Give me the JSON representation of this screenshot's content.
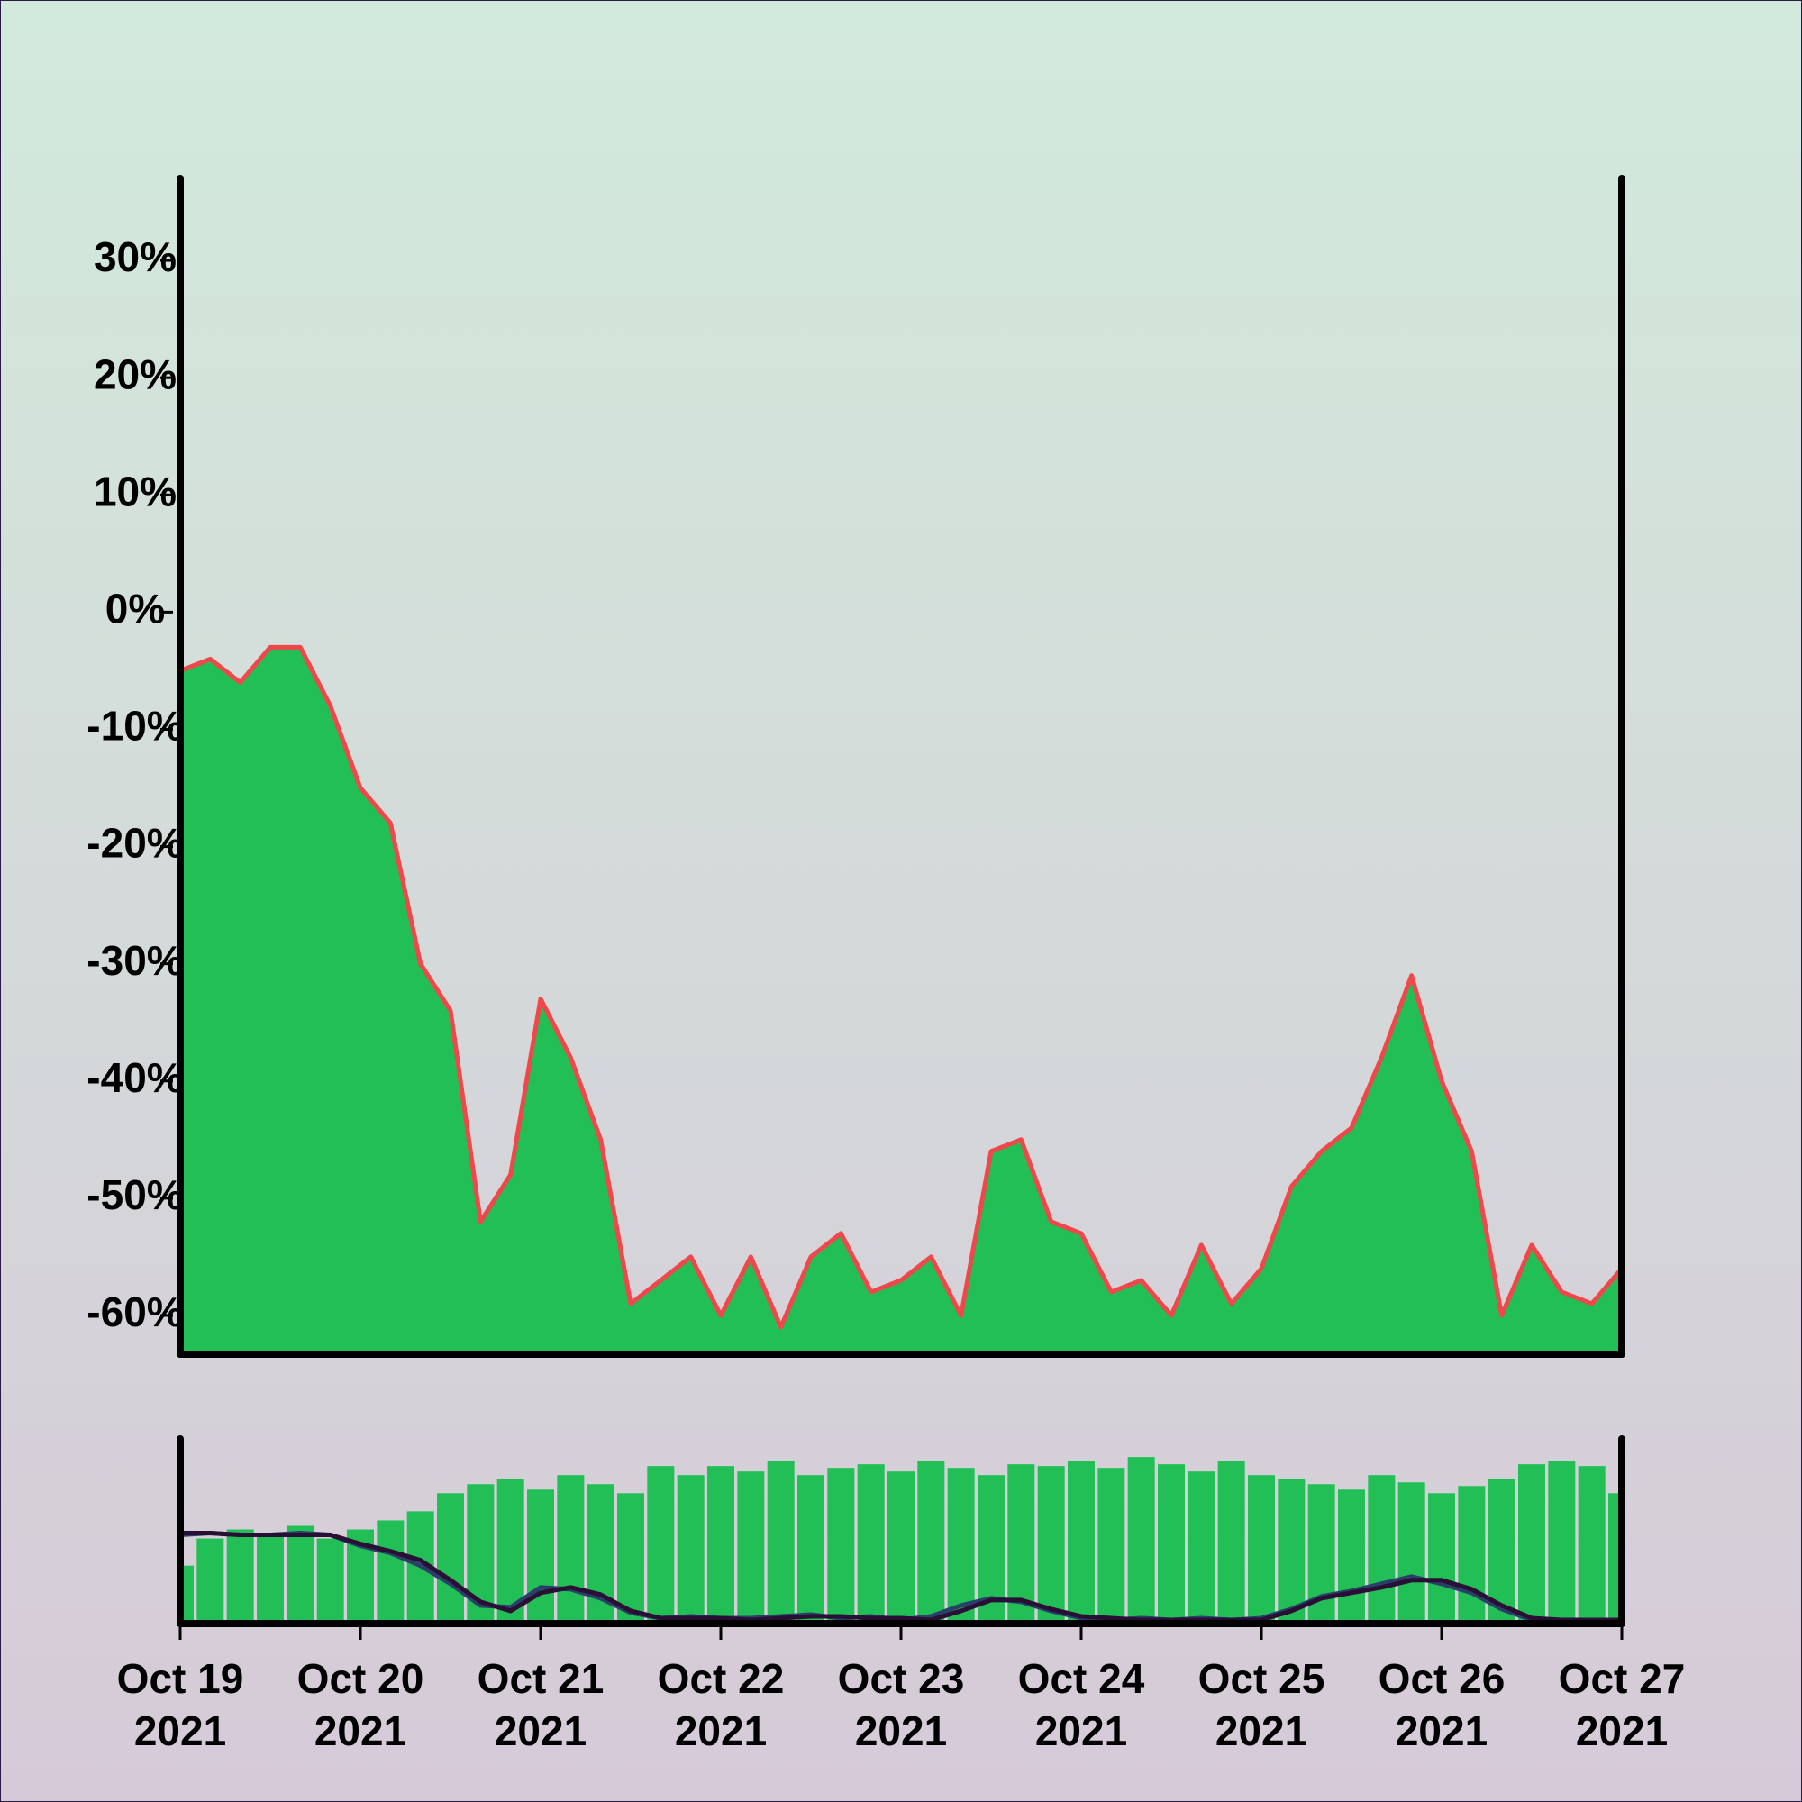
{
  "chart_data": [
    {
      "type": "area",
      "x": [
        "2021-10-19T00:00",
        "2021-10-19T04:00",
        "2021-10-19T08:00",
        "2021-10-19T12:00",
        "2021-10-19T16:00",
        "2021-10-19T20:00",
        "2021-10-20T00:00",
        "2021-10-20T04:00",
        "2021-10-20T08:00",
        "2021-10-20T12:00",
        "2021-10-20T16:00",
        "2021-10-20T20:00",
        "2021-10-21T00:00",
        "2021-10-21T04:00",
        "2021-10-21T08:00",
        "2021-10-21T12:00",
        "2021-10-21T16:00",
        "2021-10-21T20:00",
        "2021-10-22T00:00",
        "2021-10-22T04:00",
        "2021-10-22T08:00",
        "2021-10-22T12:00",
        "2021-10-22T16:00",
        "2021-10-22T20:00",
        "2021-10-23T00:00",
        "2021-10-23T04:00",
        "2021-10-23T08:00",
        "2021-10-23T12:00",
        "2021-10-23T16:00",
        "2021-10-23T20:00",
        "2021-10-24T00:00",
        "2021-10-24T04:00",
        "2021-10-24T08:00",
        "2021-10-24T12:00",
        "2021-10-24T16:00",
        "2021-10-24T20:00",
        "2021-10-25T00:00",
        "2021-10-25T04:00",
        "2021-10-25T08:00",
        "2021-10-25T12:00",
        "2021-10-25T16:00",
        "2021-10-25T20:00",
        "2021-10-26T00:00",
        "2021-10-26T04:00",
        "2021-10-26T08:00",
        "2021-10-26T12:00",
        "2021-10-26T16:00",
        "2021-10-26T20:00",
        "2021-10-27T00:00"
      ],
      "series": [
        {
          "color": "#f0474a",
          "fill": "#21bf55",
          "values": [
            -5,
            -4,
            -6,
            -3,
            -3,
            -8,
            -15,
            -18,
            -30,
            -34,
            -52,
            -48,
            -33,
            -38,
            -45,
            -59,
            -57,
            -55,
            -60,
            -55,
            -61,
            -55,
            -53,
            -58,
            -57,
            -55,
            -60,
            -46,
            -45,
            -52,
            -53,
            -58,
            -57,
            -60,
            -54,
            -59,
            -56,
            -49,
            -46,
            -44,
            -38,
            -31,
            -40,
            -46,
            -60,
            -54,
            -58,
            -59,
            -56
          ]
        }
      ],
      "xlim": [
        "2021-10-19T00:00",
        "2021-10-27T00:00"
      ],
      "ylim": [
        -63,
        37
      ],
      "yticks": [
        {
          "value": -60,
          "label": "-60%"
        },
        {
          "value": -50,
          "label": "-50%"
        },
        {
          "value": -40,
          "label": "-40%"
        },
        {
          "value": -30,
          "label": "-30%"
        },
        {
          "value": -20,
          "label": "-20%"
        },
        {
          "value": -10,
          "label": "-10%"
        },
        {
          "value": 0,
          "label": "0%"
        },
        {
          "value": 10,
          "label": "10%"
        },
        {
          "value": 20,
          "label": "20%"
        },
        {
          "value": 30,
          "label": "30%"
        }
      ]
    },
    {
      "type": "combo",
      "x": [
        "2021-10-19T00:00",
        "2021-10-19T04:00",
        "2021-10-19T08:00",
        "2021-10-19T12:00",
        "2021-10-19T16:00",
        "2021-10-19T20:00",
        "2021-10-20T00:00",
        "2021-10-20T04:00",
        "2021-10-20T08:00",
        "2021-10-20T12:00",
        "2021-10-20T16:00",
        "2021-10-20T20:00",
        "2021-10-21T00:00",
        "2021-10-21T04:00",
        "2021-10-21T08:00",
        "2021-10-21T12:00",
        "2021-10-21T16:00",
        "2021-10-21T20:00",
        "2021-10-22T00:00",
        "2021-10-22T04:00",
        "2021-10-22T08:00",
        "2021-10-22T12:00",
        "2021-10-22T16:00",
        "2021-10-22T20:00",
        "2021-10-23T00:00",
        "2021-10-23T04:00",
        "2021-10-23T08:00",
        "2021-10-23T12:00",
        "2021-10-23T16:00",
        "2021-10-23T20:00",
        "2021-10-24T00:00",
        "2021-10-24T04:00",
        "2021-10-24T08:00",
        "2021-10-24T12:00",
        "2021-10-24T16:00",
        "2021-10-24T20:00",
        "2021-10-25T00:00",
        "2021-10-25T04:00",
        "2021-10-25T08:00",
        "2021-10-25T12:00",
        "2021-10-25T16:00",
        "2021-10-25T20:00",
        "2021-10-26T00:00",
        "2021-10-26T04:00",
        "2021-10-26T08:00",
        "2021-10-26T12:00",
        "2021-10-26T16:00",
        "2021-10-26T20:00",
        "2021-10-27T00:00"
      ],
      "series": [
        {
          "type": "bar",
          "color": "#21bf55",
          "values": [
            30,
            45,
            50,
            48,
            52,
            45,
            50,
            55,
            60,
            70,
            75,
            78,
            72,
            80,
            75,
            70,
            85,
            80,
            85,
            82,
            88,
            80,
            84,
            86,
            82,
            88,
            84,
            80,
            86,
            85,
            88,
            84,
            90,
            86,
            82,
            88,
            80,
            78,
            75,
            72,
            80,
            76,
            70,
            74,
            78,
            86,
            88,
            85,
            70
          ]
        },
        {
          "type": "line",
          "color": "#2a3f6a",
          "values": [
            47,
            48,
            47,
            47,
            48,
            47,
            41,
            37,
            30,
            20,
            8,
            7,
            18,
            17,
            12,
            4,
            1,
            2,
            1,
            1,
            2,
            3,
            1,
            2,
            0,
            2,
            8,
            12,
            10,
            5,
            1,
            0,
            1,
            0,
            1,
            0,
            1,
            6,
            13,
            16,
            20,
            24,
            20,
            15,
            6,
            0,
            0,
            0,
            0
          ]
        },
        {
          "type": "line",
          "color": "#2a0f35",
          "values": [
            48,
            48,
            47,
            47,
            47,
            47,
            42,
            38,
            33,
            22,
            10,
            5,
            15,
            18,
            14,
            5,
            1,
            1,
            1,
            0,
            1,
            2,
            2,
            1,
            1,
            0,
            5,
            11,
            11,
            6,
            2,
            1,
            0,
            0,
            0,
            0,
            0,
            5,
            12,
            15,
            18,
            22,
            22,
            17,
            8,
            1,
            0,
            0,
            0
          ]
        }
      ],
      "xlim": [
        "2021-10-19T00:00",
        "2021-10-27T00:00"
      ],
      "ylim": [
        0,
        100
      ],
      "xticks": [
        {
          "value": "2021-10-19T00:00",
          "label": "Oct 19\n2021"
        },
        {
          "value": "2021-10-20T00:00",
          "label": "Oct 20\n2021"
        },
        {
          "value": "2021-10-21T00:00",
          "label": "Oct 21\n2021"
        },
        {
          "value": "2021-10-22T00:00",
          "label": "Oct 22\n2021"
        },
        {
          "value": "2021-10-23T00:00",
          "label": "Oct 23\n2021"
        },
        {
          "value": "2021-10-24T00:00",
          "label": "Oct 24\n2021"
        },
        {
          "value": "2021-10-25T00:00",
          "label": "Oct 25\n2021"
        },
        {
          "value": "2021-10-26T00:00",
          "label": "Oct 26\n2021"
        },
        {
          "value": "2021-10-27T00:00",
          "label": "Oct 27\n2021"
        }
      ]
    }
  ]
}
